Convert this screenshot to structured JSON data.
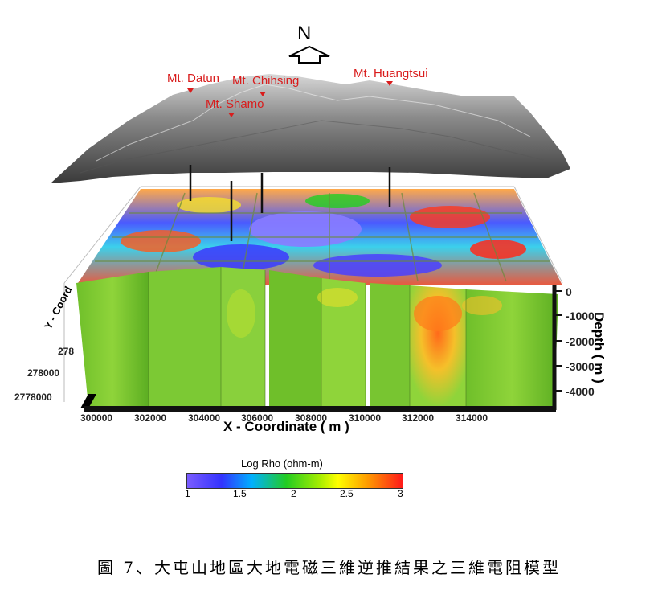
{
  "north_label": "N",
  "peaks": [
    {
      "name": "Mt. Datun"
    },
    {
      "name": "Mt. Chihsing"
    },
    {
      "name": "Mt. Shamo"
    },
    {
      "name": "Mt. Huangtsui"
    }
  ],
  "x_axis": {
    "title": "X - Coordinate ( m )",
    "ticks": [
      "300000",
      "302000",
      "304000",
      "306000",
      "308000",
      "310000",
      "312000",
      "314000"
    ]
  },
  "y_axis": {
    "title": "Y - Coord",
    "ticks": [
      "278",
      "278000",
      "2778000"
    ]
  },
  "depth_axis": {
    "title": "Depth ( m )",
    "ticks": [
      "0",
      "-1000",
      "-2000",
      "-3000",
      "-4000"
    ]
  },
  "colorbar": {
    "title": "Log Rho (ohm-m)",
    "ticks": [
      "1",
      "1.5",
      "2",
      "2.5",
      "3"
    ],
    "colors": [
      "#7a5cff",
      "#3333ff",
      "#00b0ff",
      "#22cc22",
      "#aaee00",
      "#ffff00",
      "#ff9900",
      "#ff1a1a"
    ]
  },
  "caption": "圖 7、大屯山地區大地電磁三維逆推結果之三維電阻模型"
}
